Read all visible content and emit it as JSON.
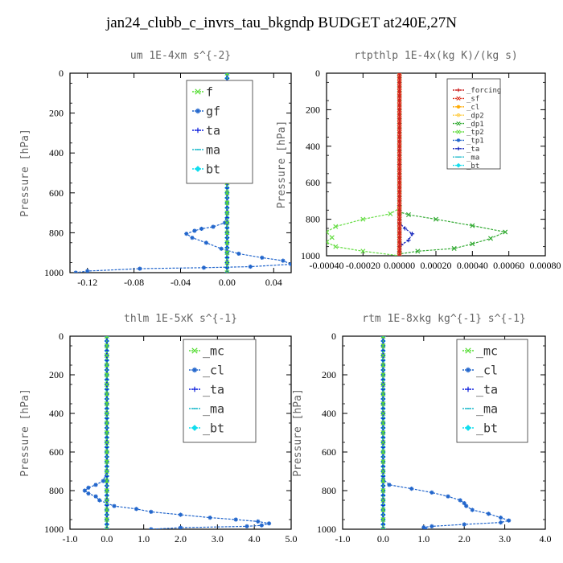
{
  "figure_title": "jan24_clubb_c_invrs_tau_bkgndp  BUDGET at240E,27N",
  "chart_data": [
    {
      "type": "line",
      "title": "um  1E-4xm s^{-2}",
      "ylabel": "Pressure [hPa]",
      "xlim": [
        -0.135,
        0.055
      ],
      "ylim": [
        1000,
        0
      ],
      "x_ticks": [
        -0.12,
        -0.08,
        -0.04,
        0.0,
        0.04
      ],
      "x_tick_labels": [
        "-0.12",
        "-0.08",
        "-0.04",
        "0.00",
        "0.04"
      ],
      "y_ticks": [
        0,
        200,
        400,
        600,
        800,
        1000
      ],
      "y_tick_labels": [
        "0",
        "200",
        "400",
        "600",
        "800",
        "1000"
      ],
      "legend_position": "top-right",
      "series": [
        {
          "name": "f",
          "color": "#55dd33",
          "marker": "x",
          "points": [
            [
              0,
              0
            ],
            [
              0,
              50
            ],
            [
              0,
              100
            ],
            [
              0,
              150
            ],
            [
              0,
              200
            ],
            [
              0,
              250
            ],
            [
              0,
              300
            ],
            [
              0,
              350
            ],
            [
              0,
              400
            ],
            [
              0,
              450
            ],
            [
              0,
              500
            ],
            [
              0,
              550
            ],
            [
              0,
              600
            ],
            [
              0,
              650
            ],
            [
              0,
              700
            ],
            [
              0,
              750
            ],
            [
              0,
              800
            ],
            [
              0,
              850
            ],
            [
              0,
              900
            ],
            [
              0,
              950
            ],
            [
              0,
              1000
            ]
          ]
        },
        {
          "name": "gf",
          "color": "#2266cc",
          "marker": "*",
          "points": [
            [
              0,
              0
            ],
            [
              0,
              200
            ],
            [
              0,
              400
            ],
            [
              0,
              600
            ],
            [
              0,
              700
            ],
            [
              -0.002,
              750
            ],
            [
              -0.012,
              770
            ],
            [
              -0.022,
              780
            ],
            [
              -0.028,
              790
            ],
            [
              -0.035,
              805
            ],
            [
              -0.03,
              825
            ],
            [
              -0.018,
              850
            ],
            [
              -0.005,
              880
            ],
            [
              0.01,
              905
            ],
            [
              0.03,
              925
            ],
            [
              0.048,
              940
            ],
            [
              0.055,
              958
            ],
            [
              0.02,
              970
            ],
            [
              -0.02,
              975
            ],
            [
              -0.075,
              980
            ],
            [
              -0.12,
              992
            ],
            [
              -0.13,
              1000
            ]
          ]
        },
        {
          "name": "ta",
          "color": "#1122dd",
          "marker": "+",
          "points": [
            [
              0,
              0
            ],
            [
              0,
              1000
            ]
          ]
        },
        {
          "name": "ma",
          "color": "#22bbcc",
          "marker": "-",
          "points": [
            [
              0,
              0
            ],
            [
              0,
              1000
            ]
          ]
        },
        {
          "name": "bt",
          "color": "#11ddee",
          "marker": "diamond",
          "points": [
            [
              0,
              0
            ],
            [
              0,
              1000
            ]
          ]
        }
      ]
    },
    {
      "type": "line",
      "title": "rtpthlp  1E-4x(kg K)/(kg s)",
      "ylabel": "Pressure [hPa]",
      "xlim": [
        -0.0004,
        0.0008
      ],
      "ylim": [
        1000,
        0
      ],
      "x_ticks": [
        -0.0004,
        -0.0002,
        0,
        0.0002,
        0.0004,
        0.0006,
        0.0008
      ],
      "x_tick_labels": [
        "-0.00040",
        "-0.00020",
        "0.00000",
        "0.00020",
        "0.00040",
        "0.00060",
        "0.00080"
      ],
      "y_ticks": [
        0,
        200,
        400,
        600,
        800,
        1000
      ],
      "y_tick_labels": [
        "0",
        "200",
        "400",
        "600",
        "800",
        "1000"
      ],
      "legend_position": "top-right",
      "series": [
        {
          "name": "_forcing",
          "color": "#cc2222",
          "marker": "+",
          "points": [
            [
              0,
              0
            ],
            [
              0,
              1000
            ]
          ]
        },
        {
          "name": "_sf",
          "color": "#dd3322",
          "marker": "x",
          "points": [
            [
              0,
              0
            ],
            [
              0,
              1000
            ]
          ]
        },
        {
          "name": "_cl",
          "color": "#ffaa00",
          "marker": "*",
          "points": [
            [
              0,
              0
            ],
            [
              0,
              1000
            ]
          ]
        },
        {
          "name": "_dp2",
          "color": "#ffcc44",
          "marker": "o",
          "points": [
            [
              0,
              0
            ],
            [
              0,
              1000
            ]
          ]
        },
        {
          "name": "_dp1",
          "color": "#33aa33",
          "marker": "x",
          "points": [
            [
              0,
              0
            ],
            [
              0,
              760
            ],
            [
              5e-05,
              775
            ],
            [
              0.0002,
              800
            ],
            [
              0.0004,
              835
            ],
            [
              0.00058,
              870
            ],
            [
              0.0005,
              905
            ],
            [
              0.0004,
              935
            ],
            [
              0.0003,
              960
            ],
            [
              0.0001,
              975
            ],
            [
              0,
              990
            ],
            [
              0,
              1000
            ]
          ]
        },
        {
          "name": "_tp2",
          "color": "#66dd44",
          "marker": "x",
          "points": [
            [
              0,
              0
            ],
            [
              0,
              740
            ],
            [
              -5e-05,
              770
            ],
            [
              -0.0002,
              800
            ],
            [
              -0.00035,
              840
            ],
            [
              -0.0004,
              870
            ],
            [
              -0.00037,
              900
            ],
            [
              -0.0004,
              925
            ],
            [
              -0.00035,
              950
            ],
            [
              -0.0002,
              975
            ],
            [
              0,
              1000
            ]
          ]
        },
        {
          "name": "_tp1",
          "color": "#2266cc",
          "marker": "*",
          "points": [
            [
              0,
              0
            ],
            [
              0,
              1000
            ]
          ]
        },
        {
          "name": "_ta",
          "color": "#1122bb",
          "marker": "+",
          "points": [
            [
              0,
              0
            ],
            [
              0,
              820
            ],
            [
              3e-05,
              850
            ],
            [
              7e-05,
              880
            ],
            [
              5e-05,
              915
            ],
            [
              1e-05,
              940
            ],
            [
              0,
              1000
            ]
          ]
        },
        {
          "name": "_ma",
          "color": "#22bbcc",
          "marker": "-",
          "points": [
            [
              0,
              0
            ],
            [
              0,
              1000
            ]
          ]
        },
        {
          "name": "_bt",
          "color": "#11ddee",
          "marker": "diamond",
          "points": [
            [
              0,
              0
            ],
            [
              0,
              1000
            ]
          ]
        }
      ]
    },
    {
      "type": "line",
      "title": "thlm  1E-5xK s^{-1}",
      "ylabel": "Pressure [hPa]",
      "xlim": [
        -1.0,
        5.0
      ],
      "ylim": [
        1000,
        0
      ],
      "x_ticks": [
        -1,
        0,
        1,
        2,
        3,
        4,
        5
      ],
      "x_tick_labels": [
        "-1.0",
        "0.0",
        "1.0",
        "2.0",
        "3.0",
        "4.0",
        "5.0"
      ],
      "y_ticks": [
        0,
        200,
        400,
        600,
        800,
        1000
      ],
      "y_tick_labels": [
        "0",
        "200",
        "400",
        "600",
        "800",
        "1000"
      ],
      "legend_position": "top-right",
      "series": [
        {
          "name": "_mc",
          "color": "#55dd33",
          "marker": "x",
          "points": [
            [
              0,
              0
            ],
            [
              0,
              50
            ],
            [
              0,
              100
            ],
            [
              0,
              150
            ],
            [
              0,
              200
            ],
            [
              0,
              250
            ],
            [
              0,
              300
            ],
            [
              0,
              350
            ],
            [
              0,
              400
            ],
            [
              0,
              450
            ],
            [
              0,
              500
            ],
            [
              0,
              550
            ],
            [
              0,
              600
            ],
            [
              0,
              650
            ],
            [
              0,
              700
            ],
            [
              0,
              750
            ],
            [
              0,
              800
            ],
            [
              0,
              850
            ],
            [
              0,
              900
            ],
            [
              0,
              950
            ],
            [
              0,
              1000
            ]
          ]
        },
        {
          "name": "_cl",
          "color": "#2266cc",
          "marker": "*",
          "points": [
            [
              0,
              0
            ],
            [
              0,
              200
            ],
            [
              0,
              400
            ],
            [
              0,
              600
            ],
            [
              0,
              700
            ],
            [
              -0.1,
              750
            ],
            [
              -0.3,
              770
            ],
            [
              -0.5,
              785
            ],
            [
              -0.6,
              800
            ],
            [
              -0.5,
              815
            ],
            [
              -0.3,
              830
            ],
            [
              -0.2,
              850
            ],
            [
              0.2,
              880
            ],
            [
              0.8,
              895
            ],
            [
              1.2,
              910
            ],
            [
              2.0,
              925
            ],
            [
              2.8,
              940
            ],
            [
              3.5,
              950
            ],
            [
              4.1,
              960
            ],
            [
              4.4,
              970
            ],
            [
              4.2,
              980
            ],
            [
              3.8,
              985
            ],
            [
              2.0,
              992
            ],
            [
              1.2,
              1000
            ]
          ]
        },
        {
          "name": "_ta",
          "color": "#1122dd",
          "marker": "+",
          "points": [
            [
              0,
              0
            ],
            [
              0,
              1000
            ]
          ]
        },
        {
          "name": "_ma",
          "color": "#22bbcc",
          "marker": "-",
          "points": [
            [
              0,
              0
            ],
            [
              0,
              1000
            ]
          ]
        },
        {
          "name": "_bt",
          "color": "#11ddee",
          "marker": "diamond",
          "points": [
            [
              0,
              0
            ],
            [
              0,
              1000
            ]
          ]
        }
      ]
    },
    {
      "type": "line",
      "title": "rtm  1E-8xkg kg^{-1} s^{-1}",
      "ylabel": "Pressure [hPa]",
      "xlim": [
        -1.0,
        4.0
      ],
      "ylim": [
        1000,
        0
      ],
      "x_ticks": [
        -1,
        0,
        1,
        2,
        3,
        4
      ],
      "x_tick_labels": [
        "-1.0",
        "0.0",
        "1.0",
        "2.0",
        "3.0",
        "4.0"
      ],
      "y_ticks": [
        0,
        200,
        400,
        600,
        800,
        1000
      ],
      "y_tick_labels": [
        "0",
        "200",
        "400",
        "600",
        "800",
        "1000"
      ],
      "legend_position": "top-right",
      "series": [
        {
          "name": "_mc",
          "color": "#55dd33",
          "marker": "x",
          "points": [
            [
              0,
              0
            ],
            [
              0,
              50
            ],
            [
              0,
              100
            ],
            [
              0,
              150
            ],
            [
              0,
              200
            ],
            [
              0,
              250
            ],
            [
              0,
              300
            ],
            [
              0,
              350
            ],
            [
              0,
              400
            ],
            [
              0,
              450
            ],
            [
              0,
              500
            ],
            [
              0,
              550
            ],
            [
              0,
              600
            ],
            [
              0,
              650
            ],
            [
              0,
              700
            ],
            [
              0,
              750
            ],
            [
              0,
              800
            ],
            [
              0,
              850
            ],
            [
              0,
              900
            ],
            [
              0,
              950
            ],
            [
              0,
              1000
            ]
          ]
        },
        {
          "name": "_cl",
          "color": "#2266cc",
          "marker": "*",
          "points": [
            [
              0,
              0
            ],
            [
              0,
              600
            ],
            [
              0,
              740
            ],
            [
              0.15,
              770
            ],
            [
              0.7,
              790
            ],
            [
              1.2,
              810
            ],
            [
              1.6,
              830
            ],
            [
              1.9,
              850
            ],
            [
              2.0,
              865
            ],
            [
              2.05,
              880
            ],
            [
              2.2,
              900
            ],
            [
              2.6,
              920
            ],
            [
              2.9,
              940
            ],
            [
              3.1,
              955
            ],
            [
              2.9,
              965
            ],
            [
              2.0,
              975
            ],
            [
              1.2,
              985
            ],
            [
              1.0,
              990
            ],
            [
              1.05,
              1000
            ]
          ]
        },
        {
          "name": "_ta",
          "color": "#1122dd",
          "marker": "+",
          "points": [
            [
              0,
              0
            ],
            [
              0,
              1000
            ]
          ]
        },
        {
          "name": "_ma",
          "color": "#22bbcc",
          "marker": "-",
          "points": [
            [
              0,
              0
            ],
            [
              0,
              1000
            ]
          ]
        },
        {
          "name": "_bt",
          "color": "#11ddee",
          "marker": "diamond",
          "points": [
            [
              0,
              0
            ],
            [
              0,
              1000
            ]
          ]
        }
      ]
    }
  ]
}
